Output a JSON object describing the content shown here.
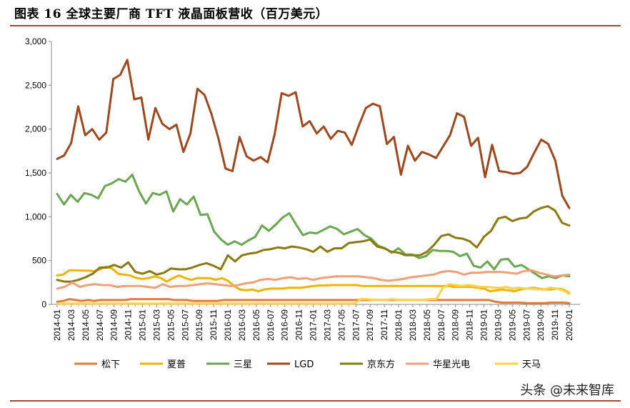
{
  "header": {
    "title": "图表 16 全球主要厂商 TFT 液晶面板营收（百万美元）"
  },
  "watermark": "头条 @未来智库",
  "chart_data": {
    "type": "line",
    "ylim": [
      0,
      3000
    ],
    "y_ticks": [
      0,
      500,
      1000,
      1500,
      2000,
      2500,
      3000
    ],
    "y_tick_labels": [
      "0",
      "500",
      "1,000",
      "1,500",
      "2,000",
      "2,500",
      "3,000"
    ],
    "x_tick_labels": [
      "2014-01",
      "2014-03",
      "2014-05",
      "2014-07",
      "2014-09",
      "2014-11",
      "2015-01",
      "2015-03",
      "2015-05",
      "2015-07",
      "2015-09",
      "2015-11",
      "2016-01",
      "2016-03",
      "2016-05",
      "2016-07",
      "2016-09",
      "2016-11",
      "2017-01",
      "2017-03",
      "2017-05",
      "2017-07",
      "2017-09",
      "2017-11",
      "2018-01",
      "2018-03",
      "2018-05",
      "2018-07",
      "2018-09",
      "2018-11",
      "2019-01",
      "2019-03",
      "2019-05",
      "2019-07",
      "2019-09",
      "2019-11",
      "2020-01"
    ],
    "legend_position": "bottom",
    "grid": false,
    "series": [
      {
        "name": "松下",
        "color": "#e07b39",
        "values": [
          30,
          40,
          60,
          50,
          40,
          50,
          40,
          50,
          50,
          50,
          50,
          50,
          60,
          60,
          60,
          60,
          60,
          60,
          60,
          50,
          50,
          50,
          40,
          40,
          40,
          40,
          40,
          50,
          50,
          50,
          50,
          50,
          50,
          50,
          50,
          50,
          50,
          50,
          50,
          50,
          50,
          50,
          50,
          50,
          50,
          50,
          50,
          50,
          50,
          50,
          50,
          50,
          50,
          50,
          50,
          50,
          50,
          50,
          50,
          50,
          50,
          50,
          50,
          50,
          50,
          50,
          50,
          50,
          50,
          50,
          50,
          30,
          20,
          20,
          20,
          20,
          15,
          15,
          15,
          15,
          20,
          20,
          20,
          15
        ]
      },
      {
        "name": "夏普",
        "color": "#f0b400",
        "values": [
          330,
          340,
          390,
          390,
          385,
          385,
          380,
          400,
          430,
          410,
          350,
          340,
          330,
          300,
          290,
          300,
          320,
          300,
          260,
          300,
          330,
          300,
          280,
          300,
          300,
          300,
          280,
          300,
          270,
          210,
          170,
          160,
          170,
          150,
          170,
          180,
          180,
          180,
          190,
          190,
          190,
          200,
          210,
          215,
          215,
          220,
          220,
          220,
          220,
          220,
          210,
          210,
          210,
          210,
          210,
          210,
          210,
          210,
          210,
          210,
          210,
          210,
          210,
          210,
          210,
          200,
          200,
          200,
          200,
          190,
          180,
          150,
          160,
          170,
          160,
          150,
          170,
          180,
          190,
          180,
          170,
          170,
          180,
          170,
          130
        ]
      },
      {
        "name": "三星",
        "color": "#6aa84f",
        "values": [
          1260,
          1140,
          1250,
          1170,
          1270,
          1250,
          1210,
          1350,
          1380,
          1430,
          1400,
          1480,
          1290,
          1150,
          1270,
          1250,
          1290,
          1060,
          1200,
          1140,
          1230,
          1020,
          1030,
          830,
          740,
          680,
          720,
          680,
          730,
          770,
          900,
          840,
          910,
          990,
          1040,
          910,
          790,
          820,
          810,
          850,
          890,
          860,
          800,
          830,
          860,
          790,
          750,
          670,
          640,
          590,
          640,
          570,
          570,
          530,
          550,
          620,
          610,
          610,
          600,
          550,
          580,
          440,
          420,
          490,
          400,
          510,
          520,
          430,
          450,
          400,
          350,
          300,
          320,
          300,
          330,
          320
        ]
      },
      {
        "name": "LGD",
        "color": "#a0481c",
        "values": [
          1660,
          1700,
          1840,
          2260,
          1930,
          2000,
          1880,
          1960,
          2570,
          2620,
          2790,
          2340,
          2360,
          1880,
          2240,
          2060,
          2000,
          2050,
          1740,
          1950,
          2460,
          2390,
          2170,
          1890,
          1550,
          1520,
          1910,
          1690,
          1640,
          1680,
          1620,
          1940,
          2410,
          2380,
          2420,
          2030,
          2090,
          1950,
          2030,
          1890,
          1980,
          1960,
          1820,
          2040,
          2240,
          2290,
          2260,
          1830,
          1910,
          1480,
          1810,
          1640,
          1740,
          1710,
          1670,
          1800,
          1930,
          2180,
          2140,
          1810,
          1900,
          1450,
          1820,
          1520,
          1510,
          1490,
          1500,
          1570,
          1730,
          1880,
          1830,
          1640,
          1240,
          1100
        ]
      },
      {
        "name": "京东方",
        "color": "#8b7a0e",
        "values": [
          280,
          260,
          260,
          280,
          310,
          350,
          420,
          420,
          450,
          420,
          480,
          370,
          350,
          380,
          340,
          360,
          410,
          400,
          400,
          420,
          450,
          470,
          440,
          400,
          560,
          490,
          560,
          580,
          590,
          620,
          630,
          650,
          640,
          660,
          650,
          630,
          600,
          660,
          600,
          640,
          640,
          700,
          710,
          720,
          740,
          660,
          640,
          600,
          590,
          560,
          560,
          560,
          600,
          680,
          780,
          800,
          760,
          750,
          720,
          650,
          770,
          840,
          980,
          1000,
          950,
          980,
          990,
          1060,
          1100,
          1120,
          1070,
          930,
          900
        ]
      },
      {
        "name": "华星光电",
        "color": "#f0a077",
        "values": [
          180,
          200,
          250,
          200,
          220,
          230,
          220,
          220,
          200,
          210,
          210,
          210,
          200,
          190,
          230,
          200,
          210,
          210,
          220,
          230,
          240,
          230,
          220,
          210,
          220,
          240,
          250,
          280,
          290,
          280,
          300,
          310,
          290,
          300,
          280,
          300,
          310,
          320,
          320,
          320,
          320,
          310,
          300,
          280,
          270,
          280,
          290,
          310,
          320,
          330,
          340,
          370,
          380,
          370,
          340,
          360,
          360,
          370,
          370,
          370,
          360,
          350,
          380,
          390,
          360,
          340,
          320,
          330,
          340
        ]
      },
      {
        "name": "天马",
        "color": "#ffd24a",
        "values": [
          10,
          10,
          10,
          10,
          10,
          10,
          10,
          10,
          10,
          10,
          10,
          10,
          10,
          10,
          10,
          10,
          10,
          10,
          10,
          10,
          10,
          10,
          10,
          10,
          10,
          10,
          10,
          10,
          10,
          10,
          10,
          10,
          10,
          10,
          10,
          10,
          10,
          10,
          10,
          10,
          10,
          10,
          10,
          10,
          10,
          10,
          10,
          10,
          60,
          60,
          50,
          50,
          50,
          60,
          50,
          50,
          50,
          50,
          50,
          60,
          60,
          190,
          230,
          220,
          210,
          220,
          210,
          200,
          200,
          190,
          190,
          200,
          180,
          190,
          180,
          180,
          170,
          170,
          190,
          180,
          160,
          120
        ]
      }
    ]
  }
}
